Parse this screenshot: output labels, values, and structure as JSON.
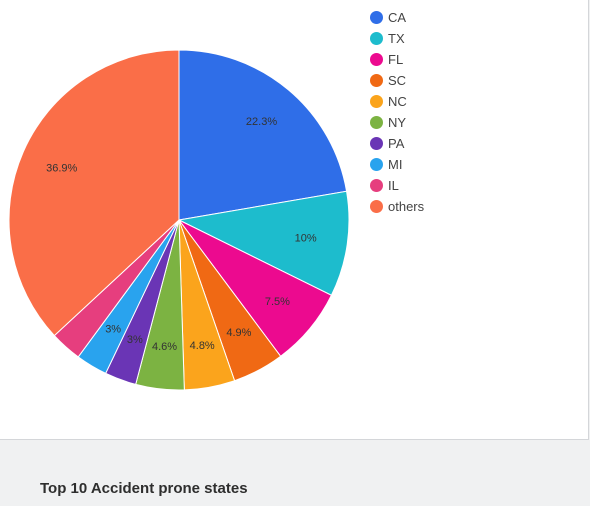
{
  "footer": {
    "title": "Top 10 Accident prone states"
  },
  "chart_data": {
    "type": "pie",
    "title": "",
    "legend_position": "right",
    "slices": [
      {
        "label": "CA",
        "value": 22.3,
        "display": "22.3%",
        "color": "#2f6ee8"
      },
      {
        "label": "TX",
        "value": 10,
        "display": "10%",
        "color": "#1dbccd"
      },
      {
        "label": "FL",
        "value": 7.5,
        "display": "7.5%",
        "color": "#ec0a8f"
      },
      {
        "label": "SC",
        "value": 4.9,
        "display": "4.9%",
        "color": "#f06914"
      },
      {
        "label": "NC",
        "value": 4.8,
        "display": "4.8%",
        "color": "#fba41c"
      },
      {
        "label": "NY",
        "value": 4.6,
        "display": "4.6%",
        "color": "#7cb342"
      },
      {
        "label": "PA",
        "value": 3,
        "display": "3%",
        "color": "#6a35b5"
      },
      {
        "label": "MI",
        "value": 3,
        "display": "3%",
        "color": "#29a3ee"
      },
      {
        "label": "IL",
        "value": 3,
        "display": "",
        "color": "#e63e7e"
      },
      {
        "label": "others",
        "value": 36.9,
        "display": "36.9%",
        "color": "#fa6e48"
      }
    ]
  }
}
